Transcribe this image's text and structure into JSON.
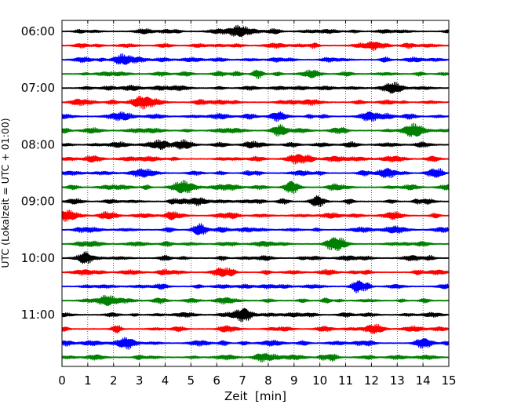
{
  "chart_data": {
    "type": "line",
    "title": "",
    "xlabel": "Zeit  [min]",
    "ylabel": "UTC (Lokalzeit = UTC + 01:00)",
    "xlim": [
      0,
      15
    ],
    "x_ticks": [
      "0",
      "1",
      "2",
      "3",
      "4",
      "5",
      "6",
      "7",
      "8",
      "9",
      "10",
      "11",
      "12",
      "13",
      "14",
      "15"
    ],
    "y_ticks": [
      "06:00",
      "07:00",
      "08:00",
      "09:00",
      "10:00",
      "11:00"
    ],
    "grid": true,
    "trace_interval_min": 15,
    "trace_colors": [
      "#000000",
      "#ff0000",
      "#0000ff",
      "#008000"
    ],
    "traces": [
      {
        "start": "06:00",
        "color": "#000000"
      },
      {
        "start": "06:15",
        "color": "#ff0000"
      },
      {
        "start": "06:30",
        "color": "#0000ff"
      },
      {
        "start": "06:45",
        "color": "#008000"
      },
      {
        "start": "07:00",
        "color": "#000000"
      },
      {
        "start": "07:15",
        "color": "#ff0000"
      },
      {
        "start": "07:30",
        "color": "#0000ff"
      },
      {
        "start": "07:45",
        "color": "#008000"
      },
      {
        "start": "08:00",
        "color": "#000000"
      },
      {
        "start": "08:15",
        "color": "#ff0000"
      },
      {
        "start": "08:30",
        "color": "#0000ff"
      },
      {
        "start": "08:45",
        "color": "#008000"
      },
      {
        "start": "09:00",
        "color": "#000000"
      },
      {
        "start": "09:15",
        "color": "#ff0000"
      },
      {
        "start": "09:30",
        "color": "#0000ff"
      },
      {
        "start": "09:45",
        "color": "#008000"
      },
      {
        "start": "10:00",
        "color": "#000000"
      },
      {
        "start": "10:15",
        "color": "#ff0000"
      },
      {
        "start": "10:30",
        "color": "#0000ff"
      },
      {
        "start": "10:45",
        "color": "#008000"
      },
      {
        "start": "11:00",
        "color": "#000000"
      },
      {
        "start": "11:15",
        "color": "#ff0000"
      },
      {
        "start": "11:30",
        "color": "#0000ff"
      },
      {
        "start": "11:45",
        "color": "#008000"
      }
    ]
  }
}
